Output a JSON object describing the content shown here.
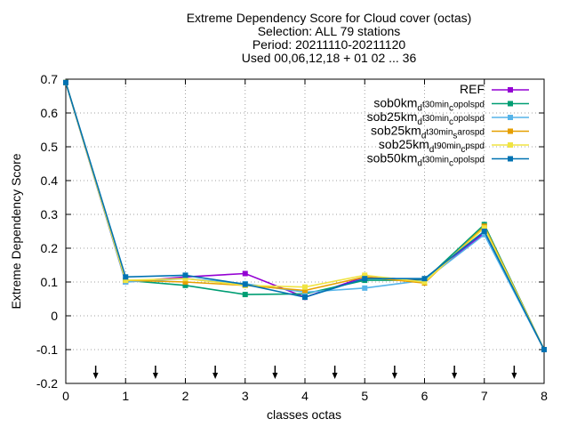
{
  "title_lines": [
    "Extreme Dependency Score  for Cloud cover (octas)",
    "Selection: ALL     79 stations",
    "Period: 20211110-20211120",
    "Used 00,06,12,18 + 01 02 ... 36"
  ],
  "chart_data": {
    "type": "line",
    "title": "Extreme Dependency Score  for Cloud cover (octas)",
    "xlabel": "classes octas",
    "ylabel": "Extreme Dependency Score",
    "x": [
      0,
      1,
      2,
      3,
      4,
      5,
      6,
      7,
      8
    ],
    "xlim": [
      0,
      8
    ],
    "ylim": [
      -0.2,
      0.7
    ],
    "xticks": [
      "0",
      "1",
      "2",
      "3",
      "4",
      "5",
      "6",
      "7",
      "8"
    ],
    "yticks": [
      "-0.2",
      "-0.1",
      "0",
      "0.1",
      "0.2",
      "0.3",
      "0.4",
      "0.5",
      "0.6",
      "0.7"
    ],
    "ytick_values": [
      -0.2,
      -0.1,
      0,
      0.1,
      0.2,
      0.3,
      0.4,
      0.5,
      0.6,
      0.7
    ],
    "grid": true,
    "legend_position": "top-right",
    "arrows_x": [
      0.5,
      1.5,
      2.5,
      3.5,
      4.5,
      5.5,
      6.5,
      7.5
    ],
    "series": [
      {
        "name": "REF",
        "name_main": "REF",
        "name_sub": "",
        "name_tail": "",
        "name_sub2": "",
        "name_tail2": "",
        "color": "#9400d3",
        "values": [
          0.69,
          0.1,
          0.115,
          0.125,
          0.055,
          0.115,
          0.105,
          0.245,
          -0.1
        ]
      },
      {
        "name": "sob0km_d t30min_c opolspd",
        "name_main": "sob0km",
        "name_sub": "d",
        "name_tail": "t30min",
        "name_sub2": "c",
        "name_tail2": "opolspd",
        "color": "#009e73",
        "values": [
          0.69,
          0.105,
          0.09,
          0.063,
          0.065,
          0.105,
          0.105,
          0.27,
          -0.1
        ]
      },
      {
        "name": "sob25km_d t30min_c opolspd",
        "name_main": "sob25km",
        "name_sub": "d",
        "name_tail": "t30min",
        "name_sub2": "c",
        "name_tail2": "opolspd",
        "color": "#56b4e9",
        "values": [
          0.69,
          0.1,
          0.11,
          0.095,
          0.07,
          0.082,
          0.105,
          0.24,
          -0.1
        ]
      },
      {
        "name": "sob25km_d t30min_s arospd",
        "name_main": "sob25km",
        "name_sub": "d",
        "name_tail": "t30min",
        "name_sub2": "s",
        "name_tail2": "arospd",
        "color": "#e69f00",
        "values": [
          0.69,
          0.105,
          0.1,
          0.09,
          0.075,
          0.115,
          0.097,
          0.265,
          -0.1
        ]
      },
      {
        "name": "sob25km_d t90min_c pspd",
        "name_main": "sob25km",
        "name_sub": "d",
        "name_tail": "t90min",
        "name_sub2": "c",
        "name_tail2": "pspd",
        "color": "#f0e442",
        "values": [
          0.69,
          0.105,
          0.11,
          0.09,
          0.085,
          0.12,
          0.1,
          0.26,
          -0.1
        ]
      },
      {
        "name": "sob50km_d t30min_c opolspd",
        "name_main": "sob50km",
        "name_sub": "d",
        "name_tail": "t30min",
        "name_sub2": "c",
        "name_tail2": "opolspd",
        "color": "#0072b2",
        "values": [
          0.69,
          0.115,
          0.12,
          0.093,
          0.055,
          0.11,
          0.11,
          0.25,
          -0.1
        ]
      }
    ]
  }
}
